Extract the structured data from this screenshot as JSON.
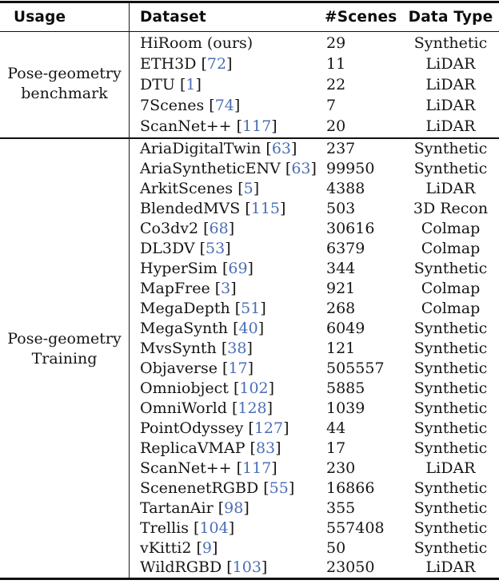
{
  "table": {
    "columns": [
      "Usage",
      "Dataset",
      "#Scenes",
      "Data Type"
    ],
    "sections": [
      {
        "usage_lines": [
          "Pose-geometry",
          "benchmark"
        ],
        "rows": [
          {
            "dataset": "HiRoom (ours)",
            "cite": null,
            "scenes": "29",
            "type": "Synthetic"
          },
          {
            "dataset": "ETH3D",
            "cite": "72",
            "scenes": "11",
            "type": "LiDAR"
          },
          {
            "dataset": "DTU",
            "cite": "1",
            "scenes": "22",
            "type": "LiDAR"
          },
          {
            "dataset": "7Scenes",
            "cite": "74",
            "scenes": "7",
            "type": "LiDAR"
          },
          {
            "dataset": "ScanNet++",
            "cite": "117",
            "scenes": "20",
            "type": "LiDAR"
          }
        ]
      },
      {
        "usage_lines": [
          "Pose-geometry",
          "Training"
        ],
        "rows": [
          {
            "dataset": "AriaDigitalTwin",
            "cite": "63",
            "scenes": "237",
            "type": "Synthetic"
          },
          {
            "dataset": "AriaSyntheticENV",
            "cite": "63",
            "scenes": "99950",
            "type": "Synthetic"
          },
          {
            "dataset": "ArkitScenes",
            "cite": "5",
            "scenes": "4388",
            "type": "LiDAR"
          },
          {
            "dataset": "BlendedMVS",
            "cite": "115",
            "scenes": "503",
            "type": "3D Recon"
          },
          {
            "dataset": "Co3dv2",
            "cite": "68",
            "scenes": "30616",
            "type": "Colmap"
          },
          {
            "dataset": "DL3DV",
            "cite": "53",
            "scenes": "6379",
            "type": "Colmap"
          },
          {
            "dataset": "HyperSim",
            "cite": "69",
            "scenes": "344",
            "type": "Synthetic"
          },
          {
            "dataset": "MapFree",
            "cite": "3",
            "scenes": "921",
            "type": "Colmap"
          },
          {
            "dataset": "MegaDepth",
            "cite": "51",
            "scenes": "268",
            "type": "Colmap"
          },
          {
            "dataset": "MegaSynth",
            "cite": "40",
            "scenes": "6049",
            "type": "Synthetic"
          },
          {
            "dataset": "MvsSynth",
            "cite": "38",
            "scenes": "121",
            "type": "Synthetic"
          },
          {
            "dataset": "Objaverse",
            "cite": "17",
            "scenes": "505557",
            "type": "Synthetic"
          },
          {
            "dataset": "Omniobject",
            "cite": "102",
            "scenes": "5885",
            "type": "Synthetic"
          },
          {
            "dataset": "OmniWorld",
            "cite": "128",
            "scenes": "1039",
            "type": "Synthetic"
          },
          {
            "dataset": "PointOdyssey",
            "cite": "127",
            "scenes": "44",
            "type": "Synthetic"
          },
          {
            "dataset": "ReplicaVMAP",
            "cite": "83",
            "scenes": "17",
            "type": "Synthetic"
          },
          {
            "dataset": "ScanNet++",
            "cite": "117",
            "scenes": "230",
            "type": "LiDAR"
          },
          {
            "dataset": "ScenenetRGBD",
            "cite": "55",
            "scenes": "16866",
            "type": "Synthetic"
          },
          {
            "dataset": "TartanAir",
            "cite": "98",
            "scenes": "355",
            "type": "Synthetic"
          },
          {
            "dataset": "Trellis",
            "cite": "104",
            "scenes": "557408",
            "type": "Synthetic"
          },
          {
            "dataset": "vKitti2",
            "cite": "9",
            "scenes": "50",
            "type": "Synthetic"
          },
          {
            "dataset": "WildRGBD",
            "cite": "103",
            "scenes": "23050",
            "type": "LiDAR"
          }
        ]
      }
    ]
  },
  "colors": {
    "citation": "#4a6fb5",
    "text": "#161616",
    "rule": "#101010"
  }
}
